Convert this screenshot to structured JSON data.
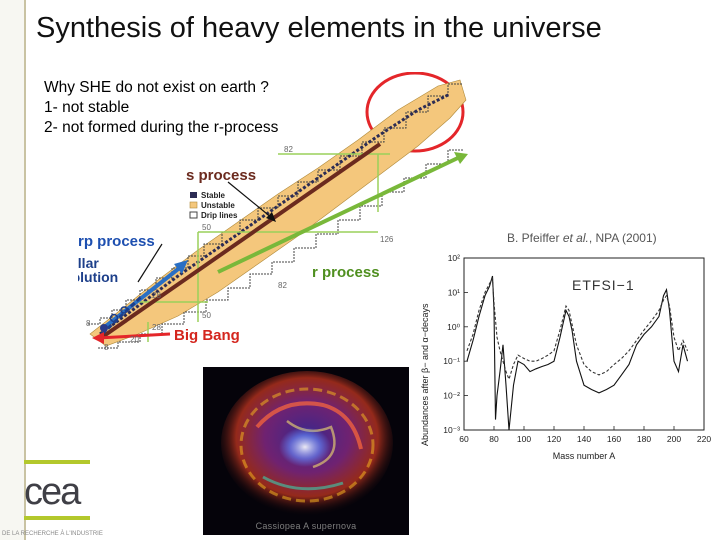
{
  "slide": {
    "title": "Synthesis of heavy elements in the universe",
    "intro_lines": [
      "Why SHE do not exist on earth ?",
      "1- not stable",
      "2- not formed during the r-process"
    ],
    "accent_colors": {
      "orange_band": "#f4c77c",
      "green": "#79b83a",
      "red_circle": "#e4262a",
      "blue": "#2a6fc4"
    }
  },
  "nuclide_chart": {
    "legend": [
      "Stable",
      "Unstable",
      "Drip lines"
    ],
    "process_labels": {
      "s": "s process",
      "rp": "rp process",
      "stellar_1": "Stellar",
      "stellar_2": "evolution",
      "r": "r process",
      "big_bang": "Big Bang"
    },
    "magic_numbers": {
      "n82_top": "82",
      "n126": "126",
      "z50": "50",
      "z82": "82",
      "z28": "28",
      "n28": "28",
      "n50": "50",
      "n20": "20",
      "z8": "8",
      "n8": "8"
    }
  },
  "credit": {
    "prefix": "B. Pfeiffer ",
    "etal": "et al.",
    "suffix": ", NPA (2001)"
  },
  "chart_data": {
    "type": "line",
    "title": "ETFSI−1",
    "xlabel": "Mass number A",
    "ylabel": "Abundances after β− and α−decays",
    "xlim": [
      60,
      220
    ],
    "ylim": [
      0.001,
      100
    ],
    "yscale": "log",
    "x_ticks": [
      "60",
      "80",
      "100",
      "120",
      "140",
      "160",
      "180",
      "200",
      "220"
    ],
    "y_ticks": [
      "10²",
      "10¹",
      "10⁰",
      "10⁻¹",
      "10⁻²",
      "10⁻³"
    ],
    "series": [
      {
        "x": [
          62,
          66,
          70,
          74,
          77,
          79,
          80,
          81,
          82,
          84,
          86,
          88,
          90,
          93,
          96,
          100,
          104,
          108,
          112,
          116,
          120,
          124,
          128,
          130,
          132,
          135,
          140,
          145,
          150,
          155,
          160,
          165,
          170,
          175,
          180,
          185,
          190,
          193,
          195,
          197,
          200,
          203,
          206,
          209
        ],
        "values": [
          0.1,
          0.4,
          2,
          8,
          15,
          30,
          3,
          0.002,
          0.01,
          0.05,
          0.3,
          0.02,
          0.001,
          0.02,
          0.1,
          0.08,
          0.05,
          0.06,
          0.07,
          0.08,
          0.1,
          0.5,
          3,
          2,
          0.8,
          0.1,
          0.02,
          0.015,
          0.012,
          0.015,
          0.02,
          0.04,
          0.08,
          0.3,
          0.6,
          1,
          2,
          8,
          12,
          3,
          0.1,
          0.05,
          0.3,
          0.1
        ]
      },
      {
        "x": [
          62,
          66,
          70,
          74,
          77,
          79,
          80,
          82,
          84,
          86,
          88,
          90,
          93,
          96,
          100,
          104,
          108,
          112,
          116,
          120,
          124,
          128,
          130,
          132,
          135,
          140,
          145,
          150,
          155,
          160,
          165,
          170,
          175,
          180,
          185,
          190,
          193,
          195,
          197,
          200,
          203,
          206,
          209
        ],
        "values": [
          0.2,
          0.6,
          3,
          10,
          18,
          25,
          5,
          0.5,
          0.2,
          0.1,
          0.05,
          0.03,
          0.08,
          0.15,
          0.12,
          0.1,
          0.1,
          0.12,
          0.15,
          0.2,
          0.8,
          4,
          3,
          1.2,
          0.3,
          0.08,
          0.05,
          0.04,
          0.05,
          0.08,
          0.12,
          0.2,
          0.4,
          0.8,
          1.5,
          3,
          6,
          8,
          4,
          0.5,
          0.2,
          0.4,
          0.2
        ]
      }
    ]
  },
  "photo": {
    "caption": "Cassiopea A supernova"
  },
  "footer": {
    "text": "DE LA RECHERCHE À L'INDUSTRIE"
  },
  "logo": {
    "text": "cea"
  }
}
